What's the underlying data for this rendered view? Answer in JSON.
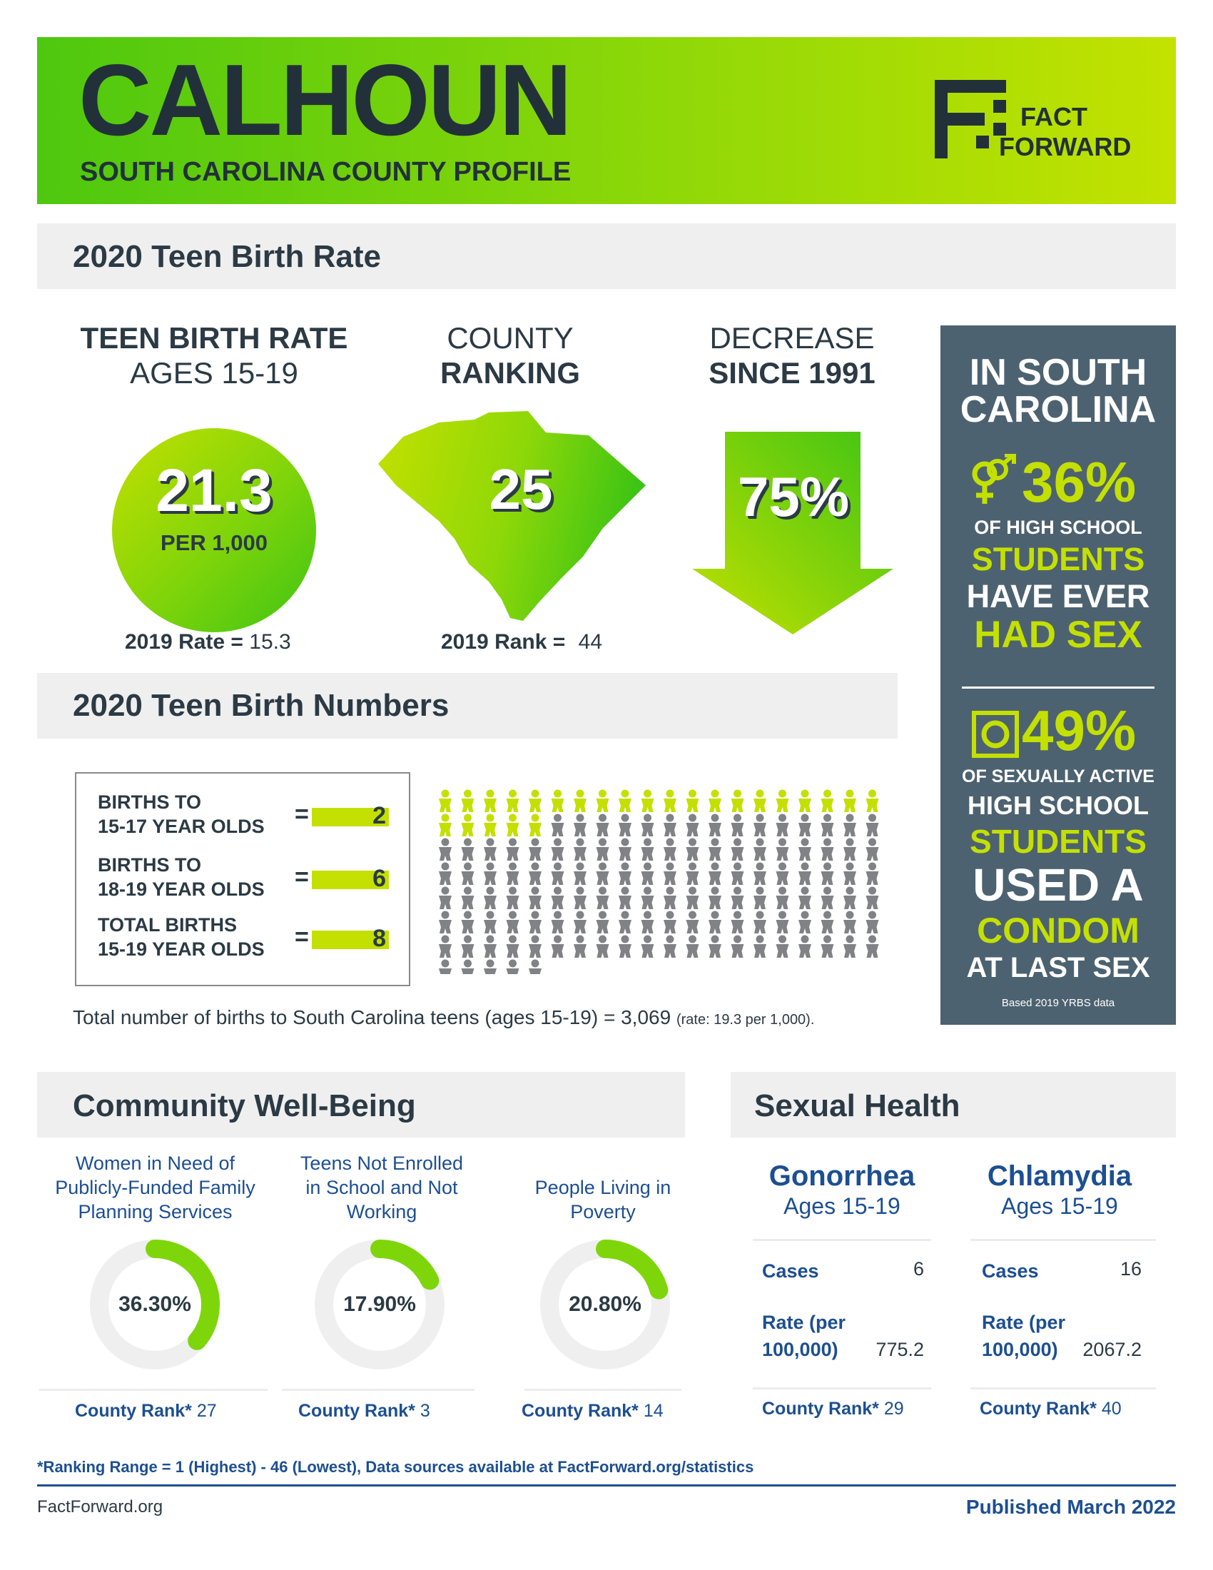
{
  "header": {
    "county": "CALHOUN",
    "subtitle": "SOUTH CAROLINA COUNTY PROFILE",
    "logo_line1": "FACT",
    "logo_line2": "FORWARD"
  },
  "teen_birth_rate": {
    "section_title": "2020 Teen Birth Rate",
    "rate": {
      "heading_line1": "TEEN BIRTH RATE",
      "heading_line2": "AGES 15-19",
      "value": "21.3",
      "unit": "PER 1,000",
      "prev_label": "2019 Rate =",
      "prev_value": "15.3"
    },
    "ranking": {
      "heading_line1": "COUNTY",
      "heading_line2": "RANKING",
      "value": "25",
      "prev_label": "2019 Rank =",
      "prev_value": "44"
    },
    "decrease": {
      "heading_line1": "DECREASE",
      "heading_line2": "SINCE 1991",
      "value": "75%"
    }
  },
  "sc_panel": {
    "title_line1": "IN SOUTH",
    "title_line2": "CAROLINA",
    "stat1_pct": "36%",
    "stat1_line1": "OF HIGH SCHOOL",
    "stat1_line2": "STUDENTS",
    "stat1_line3": "HAVE EVER",
    "stat1_line4": "HAD SEX",
    "stat2_pct": "49%",
    "stat2_line1": "OF SEXUALLY ACTIVE",
    "stat2_line2": "HIGH SCHOOL",
    "stat2_line3": "STUDENTS",
    "stat2_line4": "USED A",
    "stat2_line5": "CONDOM",
    "stat2_line6": "AT LAST SEX",
    "note": "Based 2019 YRBS data",
    "icon1": "gender-symbols-icon",
    "icon2": "condom-wrapper-icon"
  },
  "teen_birth_numbers": {
    "section_title": "2020 Teen Birth Numbers",
    "rows": [
      {
        "label_line1": "BIRTHS TO",
        "label_line2": "15-17 YEAR OLDS",
        "value": "2"
      },
      {
        "label_line1": "BIRTHS TO",
        "label_line2": "18-19 YEAR OLDS",
        "value": "6"
      },
      {
        "label_line1": "TOTAL BIRTHS",
        "label_line2": "15-19 YEAR OLDS",
        "value": "8"
      }
    ],
    "pictograph": {
      "highlighted": 25,
      "total": 145,
      "per_row": 20
    },
    "state_total_text": "Total number of births to South Carolina teens (ages 15-19) = 3,069",
    "state_rate_text": "(rate: 19.3 per 1,000)."
  },
  "community": {
    "section_title": "Community Well-Being",
    "items": [
      {
        "heading": [
          "Women in Need of",
          "Publicly-Funded Family",
          "Planning Services"
        ],
        "percent_label": "36.30%",
        "fraction": 0.363,
        "rank_label": "County Rank*",
        "rank": "27"
      },
      {
        "heading": [
          "Teens Not Enrolled",
          "in School and Not",
          "Working"
        ],
        "percent_label": "17.90%",
        "fraction": 0.179,
        "rank_label": "County Rank*",
        "rank": "3"
      },
      {
        "heading": [
          "People Living in",
          "Poverty"
        ],
        "percent_label": "20.80%",
        "fraction": 0.208,
        "rank_label": "County Rank*",
        "rank": "14"
      }
    ]
  },
  "sexual_health": {
    "section_title": "Sexual Health",
    "diseases": [
      {
        "name": "Gonorrhea",
        "ages": "Ages 15-19",
        "cases_label": "Cases",
        "cases": "6",
        "rate_label_line1": "Rate (per",
        "rate_label_line2": "100,000)",
        "rate": "775.2",
        "rank_label": "County Rank*",
        "rank": "29"
      },
      {
        "name": "Chlamydia",
        "ages": "Ages 15-19",
        "cases_label": "Cases",
        "cases": "16",
        "rate_label_line1": "Rate (per",
        "rate_label_line2": "100,000)",
        "rate": "2067.2",
        "rank_label": "County Rank*",
        "rank": "40"
      }
    ]
  },
  "footer": {
    "footnote": "*Ranking Range = 1 (Highest) - 46 (Lowest), Data sources available at FactForward.org/statistics",
    "site": "FactForward.org",
    "published": "Published March 2022"
  },
  "colors": {
    "navy": "#2b3a44",
    "lime": "#c4e000",
    "green": "#4ec80f",
    "blue": "#1d4f91",
    "panel": "#4d6270",
    "person_gray": "#808285"
  }
}
